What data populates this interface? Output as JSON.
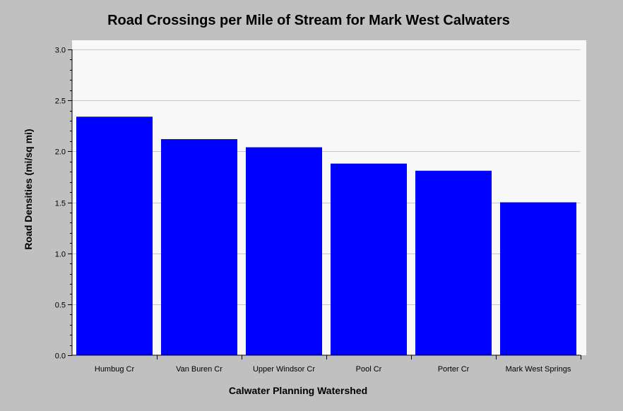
{
  "chart_data": {
    "type": "bar",
    "title": "Road Crossings per Mile of Stream for Mark West Calwaters",
    "xlabel": "Calwater Planning Watershed",
    "ylabel": "Road Densities (mi/sq mi)",
    "categories": [
      "Humbug Cr",
      "Van Buren Cr",
      "Upper Windsor Cr",
      "Pool Cr",
      "Porter Cr",
      "Mark West Springs"
    ],
    "values": [
      2.34,
      2.12,
      2.04,
      1.88,
      1.81,
      1.5
    ],
    "ylim": [
      0,
      3.0
    ],
    "yticks": [
      "0.0",
      "0.5",
      "1.0",
      "1.5",
      "2.0",
      "2.5",
      "3.0"
    ],
    "grid": true,
    "colors": {
      "bar": "#0000ff",
      "plot_background": "#f8f8f8",
      "background": "#c0c0c0",
      "grid": "#c8c8c8"
    }
  }
}
